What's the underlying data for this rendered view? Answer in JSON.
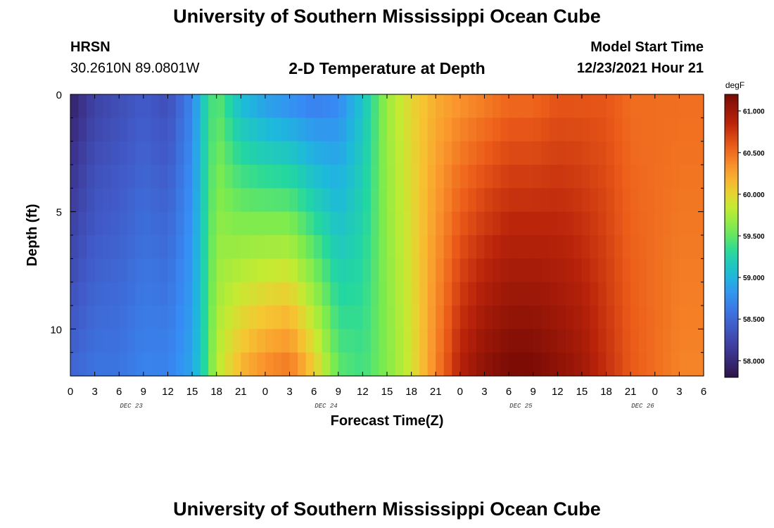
{
  "page": {
    "title": "University of Southern Mississippi Ocean Cube",
    "title2": "University of Southern Mississippi Ocean Cube",
    "station": "HRSN",
    "coords": "30.2610N  89.0801W",
    "plot_title": "2-D Temperature at Depth",
    "model_label": "Model Start Time",
    "model_time": "12/23/2021 Hour 21"
  },
  "chart_data": {
    "type": "heatmap",
    "title": "2-D Temperature at Depth",
    "xlabel": "Forecast Time(Z)",
    "ylabel": "Depth (ft)",
    "units": "degF",
    "x_ticks": [
      "0",
      "3",
      "6",
      "9",
      "12",
      "15",
      "18",
      "21",
      "0",
      "3",
      "6",
      "9",
      "12",
      "15",
      "18",
      "21",
      "0",
      "3",
      "6",
      "9",
      "12",
      "15",
      "18",
      "21",
      "0",
      "3",
      "6"
    ],
    "x_dates": [
      "DEC 23",
      "DEC 24",
      "DEC 25",
      "DEC 26"
    ],
    "date_tick_index": [
      4,
      12,
      20,
      25
    ],
    "y_ticks": [
      0,
      5,
      10
    ],
    "ylim": [
      0,
      12
    ],
    "x_hours_range": [
      0,
      78
    ],
    "colorbar_ticks": [
      "61.000",
      "60.500",
      "60.000",
      "59.500",
      "59.000",
      "58.500",
      "58.000"
    ],
    "colorbar_values": [
      61.0,
      60.5,
      60.0,
      59.5,
      59.0,
      58.5,
      58.0
    ],
    "color_range": [
      57.8,
      61.2
    ],
    "depth_levels_ft": [
      0,
      1,
      2,
      3,
      4,
      5,
      6,
      7,
      8,
      9,
      10,
      11,
      12
    ],
    "grid": "hourly columns x 12 depth layers; temperatures interpolated between key profiles below",
    "key_profiles_time_hours": [
      0,
      3,
      6,
      9,
      12,
      15,
      16.5,
      18,
      21,
      24,
      27,
      30,
      33,
      36,
      39,
      42,
      45,
      48,
      51,
      54,
      57,
      60,
      63,
      66,
      69,
      72,
      75,
      78
    ],
    "key_profiles_surface_degF": [
      57.9,
      58.2,
      58.3,
      58.4,
      58.3,
      58.7,
      59.2,
      59.5,
      59.0,
      58.8,
      58.7,
      58.6,
      58.7,
      59.1,
      59.7,
      60.0,
      60.2,
      60.3,
      60.4,
      60.5,
      60.5,
      60.6,
      60.6,
      60.6,
      60.5,
      60.5,
      60.5,
      60.5
    ],
    "key_profiles_bottom_degF": [
      58.5,
      58.6,
      58.6,
      58.7,
      58.7,
      58.9,
      59.3,
      59.8,
      60.2,
      60.4,
      60.5,
      60.1,
      59.5,
      59.4,
      59.6,
      59.9,
      60.4,
      60.9,
      61.1,
      61.2,
      61.2,
      61.1,
      61.0,
      60.8,
      60.6,
      60.5,
      60.4,
      60.4
    ]
  }
}
